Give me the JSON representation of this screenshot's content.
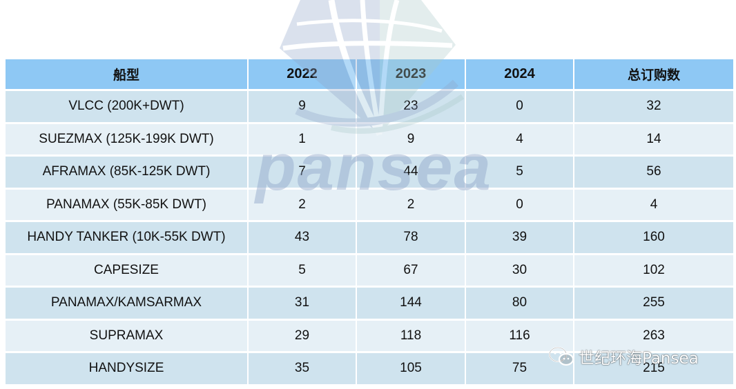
{
  "table": {
    "headers": [
      "船型",
      "2022",
      "2023",
      "2024",
      "总订购数"
    ],
    "rows": [
      [
        "VLCC (200K+DWT)",
        "9",
        "23",
        "0",
        "32"
      ],
      [
        "SUEZMAX (125K-199K DWT)",
        "1",
        "9",
        "4",
        "14"
      ],
      [
        "AFRAMAX (85K-125K DWT)",
        "7",
        "44",
        "5",
        "56"
      ],
      [
        "PANAMAX (55K-85K DWT)",
        "2",
        "2",
        "0",
        "4"
      ],
      [
        "HANDY TANKER (10K-55K DWT)",
        "43",
        "78",
        "39",
        "160"
      ],
      [
        "CAPESIZE",
        "5",
        "67",
        "30",
        "102"
      ],
      [
        "PANAMAX/KAMSARMAX",
        "31",
        "144",
        "80",
        "255"
      ],
      [
        "SUPRAMAX",
        "29",
        "118",
        "116",
        "263"
      ],
      [
        "HANDYSIZE",
        "35",
        "105",
        "75",
        "215"
      ]
    ]
  },
  "watermark": {
    "text": "pansea",
    "icon": "pansea-logo-icon"
  },
  "credit": {
    "icon": "wechat-icon",
    "text": "世纪环海Pansea"
  },
  "colors": {
    "header_bg": "#8ec8f4",
    "row_odd_bg": "#cfe3ee",
    "row_even_bg": "#e6f0f6",
    "watermark": "#8fa4c8"
  }
}
